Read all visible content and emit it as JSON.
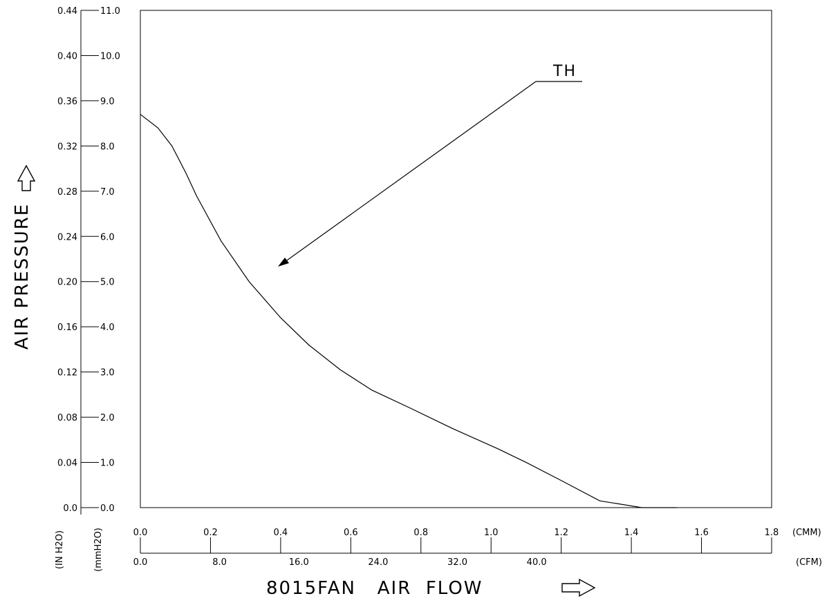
{
  "chart_data": {
    "type": "line",
    "title": "",
    "xlabel": "8015FAN   AIR  FLOW",
    "ylabel": "AIR  PRESSURE",
    "grid": false,
    "xlim": [
      0,
      1.8
    ],
    "ylim": [
      0,
      11.0
    ],
    "x_axis_cmm": {
      "unit": "(CMM)",
      "ticks": [
        "0.0",
        "0.2",
        "0.4",
        "0.6",
        "0.8",
        "1.0",
        "1.2",
        "1.4",
        "1.6",
        "1.8"
      ]
    },
    "x_axis_cfm": {
      "unit": "(CFM)",
      "ticks": [
        "0.0",
        "8.0",
        "16.0",
        "24.0",
        "32.0",
        "40.0"
      ]
    },
    "y_axis_mmh2o": {
      "unit": "(mmH2O)",
      "ticks": [
        "0.0",
        "1.0",
        "2.0",
        "3.0",
        "4.0",
        "5.0",
        "6.0",
        "7.0",
        "8.0",
        "9.0",
        "10.0",
        "11.0"
      ]
    },
    "y_axis_inh2o": {
      "unit": "(IN H2O)",
      "ticks": [
        "0.0",
        "0.04",
        "0.08",
        "0.12",
        "0.16",
        "0.20",
        "0.24",
        "0.28",
        "0.32",
        "0.36",
        "0.40",
        "0.44"
      ]
    },
    "series": [
      {
        "name": "TH",
        "x": [
          0.0,
          0.05,
          0.09,
          0.13,
          0.16,
          0.23,
          0.31,
          0.4,
          0.48,
          0.57,
          0.66,
          0.77,
          0.89,
          1.02,
          1.1,
          1.2,
          1.31,
          1.43,
          1.48,
          1.53
        ],
        "y": [
          8.7,
          8.4,
          8.0,
          7.4,
          6.9,
          5.9,
          5.0,
          4.2,
          3.6,
          3.05,
          2.6,
          2.2,
          1.75,
          1.3,
          1.0,
          0.6,
          0.15,
          0.0,
          0.0,
          0.0
        ]
      }
    ]
  }
}
